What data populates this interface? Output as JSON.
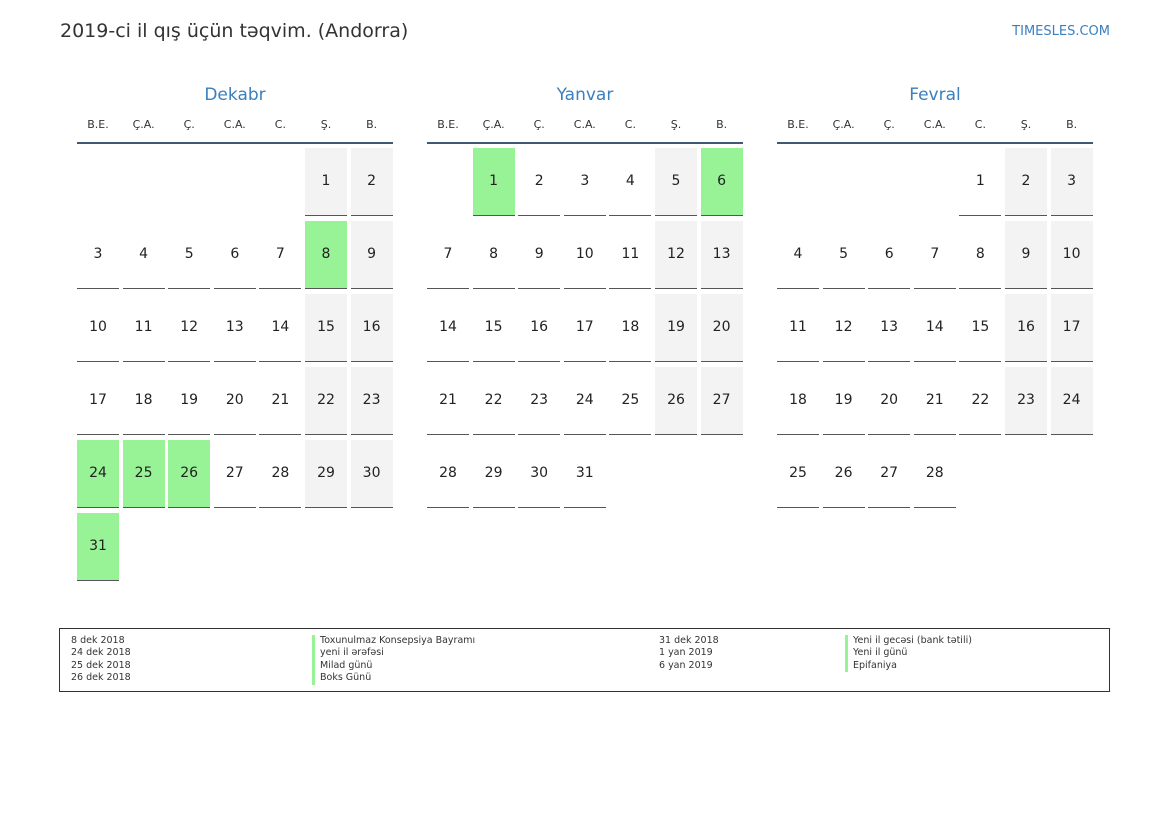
{
  "header": {
    "title": "2019-ci il qış üçün təqvim. (Andorra)",
    "site": "TIMESLES.COM"
  },
  "weekdays": [
    "B.E.",
    "Ç.A.",
    "Ç.",
    "C.A.",
    "C.",
    "Ş.",
    "B."
  ],
  "colors": {
    "holiday": "#98f296",
    "weekend": "#f3f3f3",
    "accent": "#3a7fbf",
    "header_rule": "#3f5873"
  },
  "months": [
    {
      "name": "Dekabr",
      "start_weekday": 5,
      "days": 31,
      "holidays": [
        8,
        24,
        25,
        26,
        31
      ]
    },
    {
      "name": "Yanvar",
      "start_weekday": 1,
      "days": 31,
      "holidays": [
        1,
        6
      ]
    },
    {
      "name": "Fevral",
      "start_weekday": 4,
      "days": 28,
      "holidays": []
    }
  ],
  "legend": {
    "left": [
      {
        "date": "8 dek 2018",
        "name": "Toxunulmaz Konsepsiya Bayramı"
      },
      {
        "date": "24 dek 2018",
        "name": "yeni il ərəfəsi"
      },
      {
        "date": "25 dek 2018",
        "name": "Milad günü"
      },
      {
        "date": "26 dek 2018",
        "name": "Boks Günü"
      }
    ],
    "right": [
      {
        "date": "31 dek 2018",
        "name": "Yeni il gecəsi (bank tətili)"
      },
      {
        "date": "1 yan 2019",
        "name": "Yeni il günü"
      },
      {
        "date": "6 yan 2019",
        "name": "Epifaniya"
      }
    ]
  }
}
